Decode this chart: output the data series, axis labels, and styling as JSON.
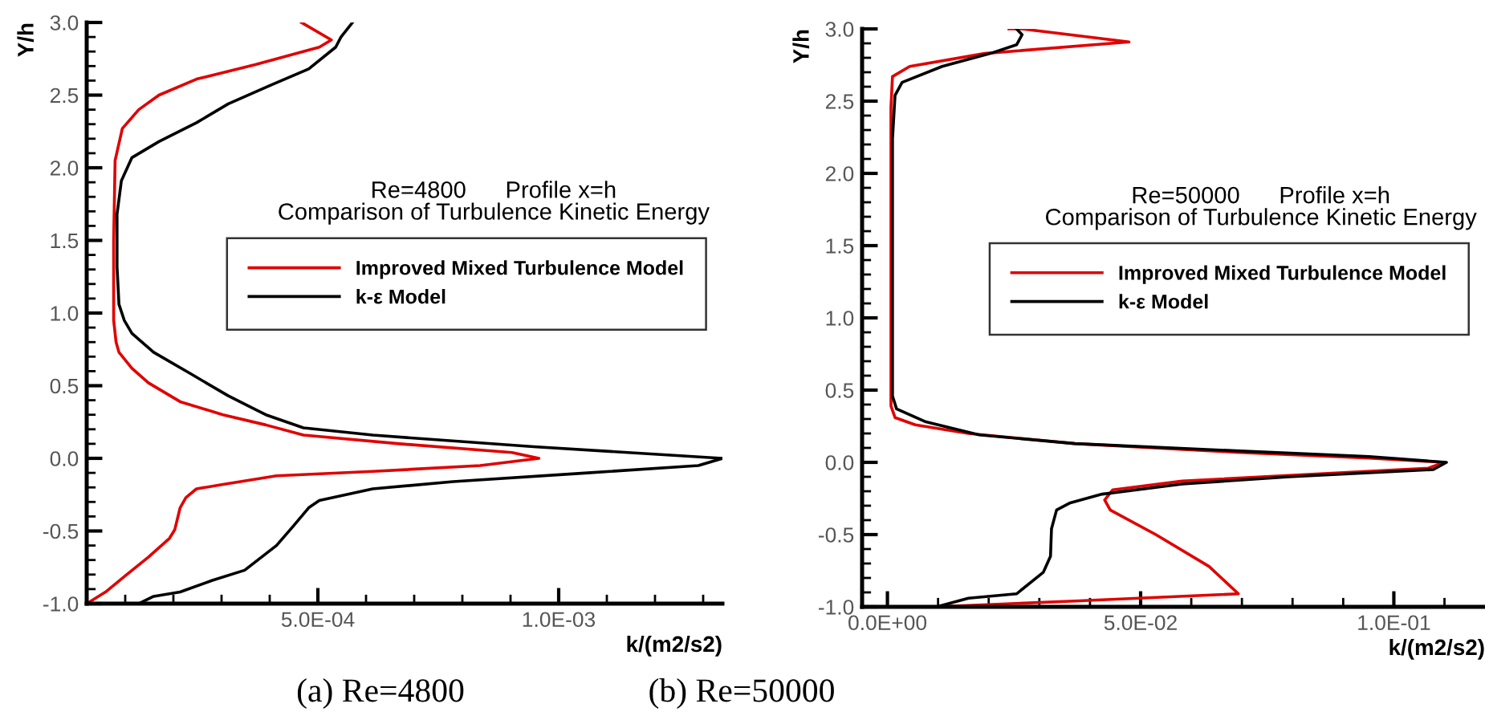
{
  "chart_data": [
    {
      "type": "line",
      "xlabel": "k/(m2/s2)",
      "ylabel": "Y/h",
      "annotations": [
        "Re=4800      Profile x=h\nComparison of Turbulence Kinetic Energy",
        "(a) Re=4800"
      ],
      "xlim": [
        2e-05,
        0.00134
      ],
      "ylim": [
        -1.0,
        3.0
      ],
      "xticks": [
        {
          "value": 0.0001,
          "label": null
        },
        {
          "value": 0.0002,
          "label": null
        },
        {
          "value": 0.0003,
          "label": null
        },
        {
          "value": 0.0004,
          "label": null
        },
        {
          "value": 0.0005,
          "label": "5.0E-04"
        },
        {
          "value": 0.0006,
          "label": null
        },
        {
          "value": 0.0007,
          "label": null
        },
        {
          "value": 0.0008,
          "label": null
        },
        {
          "value": 0.0009,
          "label": null
        },
        {
          "value": 0.001,
          "label": "1.0E-03"
        },
        {
          "value": 0.0011,
          "label": null
        },
        {
          "value": 0.0012,
          "label": null
        },
        {
          "value": 0.0013,
          "label": null
        }
      ],
      "yticks": [
        {
          "value": -1.0,
          "label": "-1.0"
        },
        {
          "value": -0.9,
          "label": null
        },
        {
          "value": -0.8,
          "label": null
        },
        {
          "value": -0.7,
          "label": null
        },
        {
          "value": -0.6,
          "label": null
        },
        {
          "value": -0.5,
          "label": "-0.5"
        },
        {
          "value": -0.4,
          "label": null
        },
        {
          "value": -0.3,
          "label": null
        },
        {
          "value": -0.2,
          "label": null
        },
        {
          "value": -0.1,
          "label": null
        },
        {
          "value": 0.0,
          "label": "0.0"
        },
        {
          "value": 0.1,
          "label": null
        },
        {
          "value": 0.2,
          "label": null
        },
        {
          "value": 0.3,
          "label": null
        },
        {
          "value": 0.4,
          "label": null
        },
        {
          "value": 0.5,
          "label": "0.5"
        },
        {
          "value": 0.6,
          "label": null
        },
        {
          "value": 0.7,
          "label": null
        },
        {
          "value": 0.8,
          "label": null
        },
        {
          "value": 0.9,
          "label": null
        },
        {
          "value": 1.0,
          "label": "1.0"
        },
        {
          "value": 1.1,
          "label": null
        },
        {
          "value": 1.2,
          "label": null
        },
        {
          "value": 1.3,
          "label": null
        },
        {
          "value": 1.4,
          "label": null
        },
        {
          "value": 1.5,
          "label": "1.5"
        },
        {
          "value": 1.6,
          "label": null
        },
        {
          "value": 1.7,
          "label": null
        },
        {
          "value": 1.8,
          "label": null
        },
        {
          "value": 1.9,
          "label": null
        },
        {
          "value": 2.0,
          "label": "2.0"
        },
        {
          "value": 2.1,
          "label": null
        },
        {
          "value": 2.2,
          "label": null
        },
        {
          "value": 2.3,
          "label": null
        },
        {
          "value": 2.4,
          "label": null
        },
        {
          "value": 2.5,
          "label": "2.5"
        },
        {
          "value": 2.6,
          "label": null
        },
        {
          "value": 2.7,
          "label": null
        },
        {
          "value": 2.8,
          "label": null
        },
        {
          "value": 2.9,
          "label": null
        },
        {
          "value": 3.0,
          "label": "3.0"
        }
      ],
      "grid": false,
      "legend": "right",
      "marker": "none",
      "line_style": "solid",
      "series": [
        {
          "name": "Improved Mixed Turbulence Model",
          "color": "#e00000",
          "x": [
            0.000466,
            0.000528,
            0.000503,
            0.00037,
            0.000248,
            0.00017,
            0.000128,
            9.4e-05,
            7.9e-05,
            7.6e-05,
            7.6e-05,
            8.1e-05,
            8.7e-05,
            0.000114,
            0.000148,
            0.000214,
            0.000303,
            0.000392,
            0.00047,
            0.00067,
            0.000903,
            0.000959,
            0.000837,
            0.000614,
            0.000414,
            0.000303,
            0.000248,
            0.000226,
            0.000214,
            0.000203,
            0.000192,
            0.000148,
            0.000103,
            5.9e-05,
            2e-05
          ],
          "values": [
            3.0,
            2.88,
            2.83,
            2.71,
            2.61,
            2.5,
            2.4,
            2.27,
            2.05,
            1.5,
            0.95,
            0.8,
            0.73,
            0.62,
            0.52,
            0.39,
            0.3,
            0.23,
            0.16,
            0.1,
            0.04,
            0.0,
            -0.05,
            -0.09,
            -0.12,
            -0.18,
            -0.21,
            -0.27,
            -0.34,
            -0.49,
            -0.55,
            -0.68,
            -0.8,
            -0.92,
            -1.0
          ]
        },
        {
          "name": "k-ε Model",
          "color": "#000000",
          "x": [
            0.000572,
            0.000548,
            0.000537,
            0.000481,
            0.000403,
            0.000314,
            0.000248,
            0.00017,
            0.000114,
            9.2e-05,
            8.3e-05,
            8.3e-05,
            8.7e-05,
            9.8e-05,
            0.000114,
            0.000159,
            0.000237,
            0.000314,
            0.000392,
            0.00047,
            0.000614,
            0.000948,
            0.00134,
            0.00129,
            0.00106,
            0.000781,
            0.000614,
            0.000503,
            0.000481,
            0.000448,
            0.000414,
            0.000348,
            0.000281,
            0.000214,
            0.000159,
            0.000128
          ],
          "values": [
            3.0,
            2.9,
            2.83,
            2.68,
            2.57,
            2.44,
            2.31,
            2.18,
            2.07,
            1.91,
            1.68,
            1.32,
            1.06,
            0.95,
            0.86,
            0.73,
            0.58,
            0.43,
            0.3,
            0.21,
            0.16,
            0.08,
            0.0,
            -0.05,
            -0.1,
            -0.16,
            -0.21,
            -0.29,
            -0.34,
            -0.47,
            -0.6,
            -0.77,
            -0.84,
            -0.92,
            -0.95,
            -1.0
          ]
        }
      ]
    },
    {
      "type": "line",
      "xlabel": "k/(m2/s2)",
      "ylabel": "Y/h",
      "annotations": [
        "Re=50000      Profile x=h\nComparison of Turbulence Kinetic Energy",
        "(b) Re=50000"
      ],
      "xlim": [
        -0.005,
        0.118
      ],
      "ylim": [
        -1.0,
        3.0
      ],
      "xticks": [
        {
          "value": 0.0,
          "label": "0.0E+00"
        },
        {
          "value": 0.01,
          "label": null
        },
        {
          "value": 0.02,
          "label": null
        },
        {
          "value": 0.03,
          "label": null
        },
        {
          "value": 0.04,
          "label": null
        },
        {
          "value": 0.05,
          "label": "5.0E-02"
        },
        {
          "value": 0.06,
          "label": null
        },
        {
          "value": 0.07,
          "label": null
        },
        {
          "value": 0.08,
          "label": null
        },
        {
          "value": 0.09,
          "label": null
        },
        {
          "value": 0.1,
          "label": "1.0E-01"
        },
        {
          "value": 0.11,
          "label": null
        }
      ],
      "yticks": [
        {
          "value": -1.0,
          "label": "-1.0"
        },
        {
          "value": -0.9,
          "label": null
        },
        {
          "value": -0.8,
          "label": null
        },
        {
          "value": -0.7,
          "label": null
        },
        {
          "value": -0.6,
          "label": null
        },
        {
          "value": -0.5,
          "label": "-0.5"
        },
        {
          "value": -0.4,
          "label": null
        },
        {
          "value": -0.3,
          "label": null
        },
        {
          "value": -0.2,
          "label": null
        },
        {
          "value": -0.1,
          "label": null
        },
        {
          "value": 0.0,
          "label": "0.0"
        },
        {
          "value": 0.1,
          "label": null
        },
        {
          "value": 0.2,
          "label": null
        },
        {
          "value": 0.3,
          "label": null
        },
        {
          "value": 0.4,
          "label": null
        },
        {
          "value": 0.5,
          "label": "0.5"
        },
        {
          "value": 0.6,
          "label": null
        },
        {
          "value": 0.7,
          "label": null
        },
        {
          "value": 0.8,
          "label": null
        },
        {
          "value": 0.9,
          "label": null
        },
        {
          "value": 1.0,
          "label": "1.0"
        },
        {
          "value": 1.1,
          "label": null
        },
        {
          "value": 1.2,
          "label": null
        },
        {
          "value": 1.3,
          "label": null
        },
        {
          "value": 1.4,
          "label": null
        },
        {
          "value": 1.5,
          "label": "1.5"
        },
        {
          "value": 1.6,
          "label": null
        },
        {
          "value": 1.7,
          "label": null
        },
        {
          "value": 1.8,
          "label": null
        },
        {
          "value": 1.9,
          "label": null
        },
        {
          "value": 2.0,
          "label": "2.0"
        },
        {
          "value": 2.1,
          "label": null
        },
        {
          "value": 2.2,
          "label": null
        },
        {
          "value": 2.3,
          "label": null
        },
        {
          "value": 2.4,
          "label": null
        },
        {
          "value": 2.5,
          "label": "2.5"
        },
        {
          "value": 2.6,
          "label": null
        },
        {
          "value": 2.7,
          "label": null
        },
        {
          "value": 2.8,
          "label": null
        },
        {
          "value": 2.9,
          "label": null
        },
        {
          "value": 3.0,
          "label": "3.0"
        }
      ],
      "grid": false,
      "legend": "right",
      "marker": "none",
      "line_style": "solid",
      "series": [
        {
          "name": "Improved Mixed Turbulence Model",
          "color": "#e00000",
          "x": [
            0.024,
            0.0266,
            0.0477,
            0.0192,
            0.0044,
            0.001,
            0.0007,
            0.0007,
            0.0007,
            0.0015,
            0.0055,
            0.016,
            0.037,
            0.0688,
            0.0951,
            0.11,
            0.1068,
            0.0793,
            0.0582,
            0.0445,
            0.0429,
            0.044,
            0.053,
            0.0635,
            0.0693,
            0.037,
            0.016,
            0.0097
          ],
          "values": [
            3.0,
            3.0,
            2.91,
            2.83,
            2.74,
            2.67,
            2.46,
            0.61,
            0.39,
            0.31,
            0.26,
            0.2,
            0.13,
            0.07,
            0.03,
            0.0,
            -0.04,
            -0.09,
            -0.13,
            -0.19,
            -0.26,
            -0.33,
            -0.5,
            -0.72,
            -0.91,
            -0.96,
            -0.99,
            -1.0
          ]
        },
        {
          "name": "k-ε Model",
          "color": "#000000",
          "x": [
            0.0255,
            0.0266,
            0.0255,
            0.0203,
            0.0108,
            0.0029,
            0.0015,
            0.001,
            0.001,
            0.0018,
            0.0076,
            0.0181,
            0.037,
            0.0688,
            0.0951,
            0.1104,
            0.1078,
            0.0793,
            0.0582,
            0.0424,
            0.0361,
            0.0334,
            0.0324,
            0.0322,
            0.0308,
            0.0255,
            0.016,
            0.0097
          ],
          "values": [
            3.0,
            2.96,
            2.89,
            2.83,
            2.74,
            2.63,
            2.54,
            2.24,
            0.46,
            0.37,
            0.28,
            0.19,
            0.13,
            0.08,
            0.04,
            0.0,
            -0.05,
            -0.1,
            -0.15,
            -0.22,
            -0.28,
            -0.33,
            -0.46,
            -0.65,
            -0.76,
            -0.91,
            -0.94,
            -1.0
          ]
        }
      ]
    }
  ]
}
